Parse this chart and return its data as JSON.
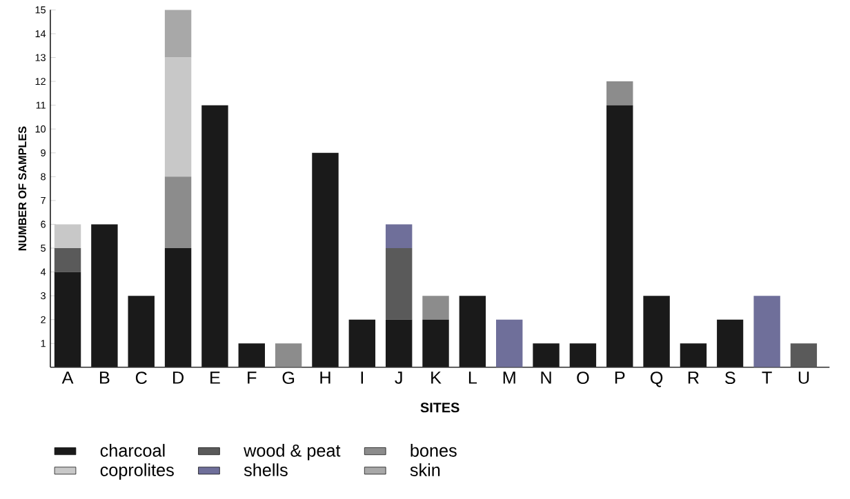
{
  "chart_data": {
    "type": "bar",
    "stacked": true,
    "xlabel": "SITES",
    "ylabel": "NUMBER OF SAMPLES",
    "categories": [
      "A",
      "B",
      "C",
      "D",
      "E",
      "F",
      "G",
      "H",
      "I",
      "J",
      "K",
      "L",
      "M",
      "N",
      "O",
      "P",
      "Q",
      "R",
      "S",
      "T",
      "U"
    ],
    "series": [
      {
        "name": "charcoal",
        "color": "#1a1a1a",
        "values": [
          4,
          6,
          3,
          5,
          11,
          1,
          null,
          9,
          2,
          2,
          2,
          3,
          null,
          1,
          1,
          11,
          3,
          1,
          2,
          null,
          null
        ]
      },
      {
        "name": "wood & peat",
        "color": "#5a5a5a",
        "values": [
          1,
          null,
          null,
          null,
          null,
          null,
          null,
          null,
          null,
          3,
          null,
          null,
          null,
          null,
          null,
          null,
          null,
          null,
          null,
          null,
          1
        ]
      },
      {
        "name": "bones",
        "color": "#8c8c8c",
        "values": [
          null,
          null,
          null,
          3,
          null,
          null,
          1,
          null,
          null,
          null,
          1,
          null,
          null,
          null,
          null,
          1,
          null,
          null,
          null,
          null,
          null
        ]
      },
      {
        "name": "coprolites",
        "color": "#c8c8c8",
        "values": [
          1,
          null,
          null,
          5,
          null,
          null,
          null,
          null,
          null,
          null,
          null,
          null,
          null,
          null,
          null,
          null,
          null,
          null,
          null,
          null,
          null
        ]
      },
      {
        "name": "shells",
        "color": "#6f6f9a",
        "values": [
          null,
          null,
          null,
          null,
          null,
          null,
          null,
          null,
          null,
          1,
          null,
          null,
          2,
          null,
          null,
          null,
          null,
          null,
          null,
          3,
          null
        ]
      },
      {
        "name": "skin",
        "color": "#a8a8a8",
        "values": [
          null,
          null,
          null,
          2,
          null,
          null,
          null,
          null,
          null,
          null,
          null,
          null,
          null,
          null,
          null,
          null,
          null,
          null,
          null,
          null,
          null
        ]
      }
    ],
    "ylim": [
      0,
      15
    ],
    "yticks": [
      1,
      2,
      3,
      4,
      5,
      6,
      7,
      8,
      9,
      10,
      11,
      12,
      13,
      14,
      15
    ],
    "legend": "bottom"
  }
}
